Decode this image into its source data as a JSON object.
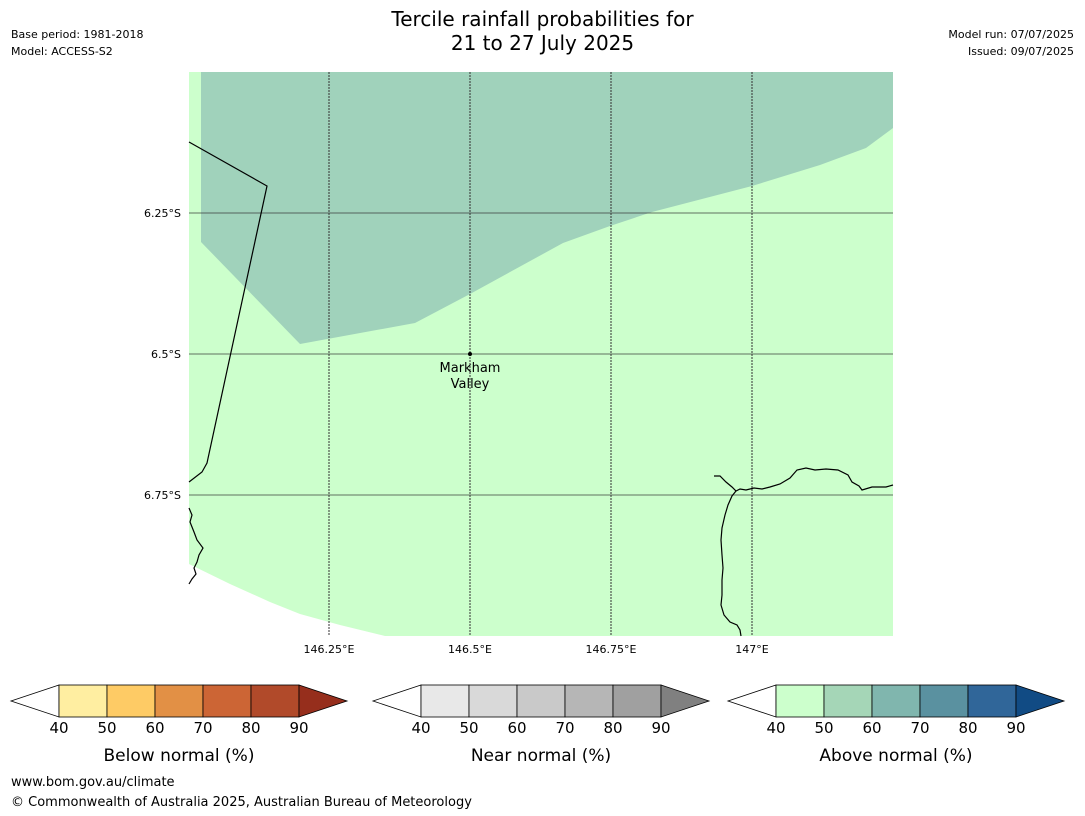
{
  "header": {
    "left_lines": [
      "Base period: 1981-2018",
      "Model: ACCESS-S2"
    ],
    "right_lines": [
      "Model run: 07/07/2025",
      "Issued: 09/07/2025"
    ],
    "title_lines": [
      "Tercile rainfall probabilities for",
      "21 to 27 July 2025"
    ]
  },
  "map": {
    "lat_ticks": [
      "6.25°S",
      "6.5°S",
      "6.75°S"
    ],
    "lon_ticks": [
      "146.25°E",
      "146.5°E",
      "146.75°E",
      "147°E"
    ],
    "place": {
      "name_lines": [
        "Markham",
        "Valley"
      ]
    },
    "colors": {
      "above_40_50": "#ccffcc",
      "above_50_60": "#a0d2bb",
      "coastline": "#000000",
      "gridline": "#333333"
    }
  },
  "colorbars": [
    {
      "label": "Below normal (%)",
      "ticks": [
        "40",
        "50",
        "60",
        "70",
        "80",
        "90"
      ],
      "colors": [
        "#ffeea1",
        "#fecb65",
        "#e29045",
        "#cc6535",
        "#b14a2a"
      ],
      "low_color": "#ffffff",
      "high_color": "#962e1c"
    },
    {
      "label": "Near normal (%)",
      "ticks": [
        "40",
        "50",
        "60",
        "70",
        "80",
        "90"
      ],
      "colors": [
        "#e8e8e8",
        "#d9d9d9",
        "#c9c9c9",
        "#b6b6b6",
        "#a0a0a0"
      ],
      "low_color": "#ffffff",
      "high_color": "#808080"
    },
    {
      "label": "Above normal (%)",
      "ticks": [
        "40",
        "50",
        "60",
        "70",
        "80",
        "90"
      ],
      "colors": [
        "#ccffcc",
        "#a5d6b7",
        "#80b6ae",
        "#5a91a0",
        "#306699"
      ],
      "low_color": "#ffffff",
      "high_color": "#114b84"
    }
  ],
  "footer": {
    "url": "www.bom.gov.au/climate",
    "copyright": "© Commonwealth of Australia 2025, Australian Bureau of Meteorology"
  }
}
